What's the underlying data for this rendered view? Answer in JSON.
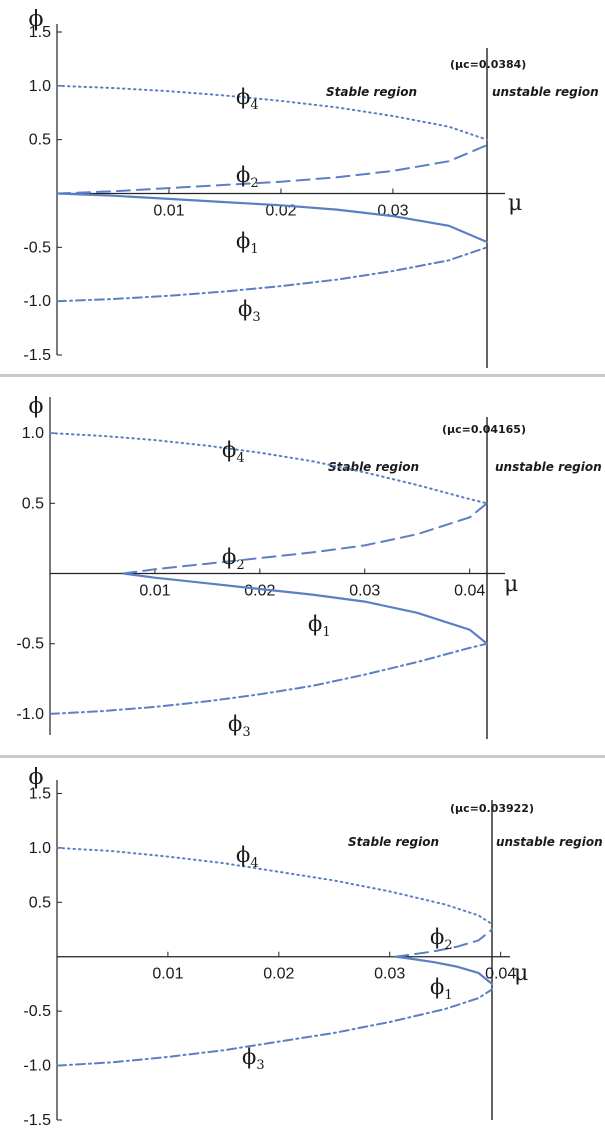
{
  "chart_data": [
    {
      "type": "line",
      "ylabel": "ϕ",
      "xlabel": "μ",
      "critical_label": "(μc=0.0384)",
      "stable_label": "Stable region",
      "unstable_label": "unstable region",
      "mu_c": 0.0384,
      "x_ticks": [
        "0.01",
        "0.02",
        "0.03"
      ],
      "y_ticks": [
        "1.5",
        "1.0",
        "0.5",
        "-0.5",
        "-1.0",
        "-1.5"
      ],
      "xlim": [
        0,
        0.0384
      ],
      "ylim": [
        -1.5,
        1.5
      ],
      "series": [
        {
          "name": "ϕ4",
          "style": "dotted",
          "x": [
            0,
            0.005,
            0.01,
            0.015,
            0.02,
            0.025,
            0.03,
            0.035,
            0.0384
          ],
          "y": [
            1.0,
            0.98,
            0.95,
            0.91,
            0.86,
            0.8,
            0.72,
            0.62,
            0.5
          ]
        },
        {
          "name": "ϕ2",
          "style": "dashed",
          "x": [
            0,
            0.005,
            0.01,
            0.015,
            0.02,
            0.025,
            0.03,
            0.035,
            0.0384
          ],
          "y": [
            0.0,
            0.02,
            0.05,
            0.08,
            0.11,
            0.15,
            0.21,
            0.3,
            0.45
          ]
        },
        {
          "name": "ϕ1",
          "style": "solid",
          "x": [
            0,
            0.005,
            0.01,
            0.015,
            0.02,
            0.025,
            0.03,
            0.035,
            0.0384
          ],
          "y": [
            0.0,
            -0.02,
            -0.05,
            -0.08,
            -0.11,
            -0.15,
            -0.21,
            -0.3,
            -0.45
          ]
        },
        {
          "name": "ϕ3",
          "style": "dashdot",
          "x": [
            0,
            0.005,
            0.01,
            0.015,
            0.02,
            0.025,
            0.03,
            0.035,
            0.0384
          ],
          "y": [
            -1.0,
            -0.98,
            -0.95,
            -0.91,
            -0.86,
            -0.8,
            -0.72,
            -0.62,
            -0.5
          ]
        }
      ]
    },
    {
      "type": "line",
      "ylabel": "ϕ",
      "xlabel": "μ",
      "critical_label": "(μc=0.04165)",
      "stable_label": "Stable region",
      "unstable_label": "unstable region",
      "mu_c": 0.04165,
      "x_ticks": [
        "0.01",
        "0.02",
        "0.03",
        "0.04"
      ],
      "y_ticks": [
        "1.0",
        "0.5",
        "-0.5",
        "-1.0"
      ],
      "xlim": [
        0,
        0.04165
      ],
      "ylim": [
        -1.15,
        1.2
      ],
      "series": [
        {
          "name": "ϕ4",
          "style": "dotted",
          "x": [
            0,
            0.005,
            0.01,
            0.015,
            0.02,
            0.025,
            0.03,
            0.035,
            0.04,
            0.04165
          ],
          "y": [
            1.0,
            0.98,
            0.95,
            0.91,
            0.86,
            0.8,
            0.72,
            0.63,
            0.53,
            0.5
          ]
        },
        {
          "name": "ϕ2",
          "style": "dashed",
          "x": [
            0.007,
            0.01,
            0.015,
            0.02,
            0.025,
            0.03,
            0.035,
            0.04,
            0.04165
          ],
          "y": [
            0.0,
            0.03,
            0.07,
            0.11,
            0.15,
            0.2,
            0.28,
            0.4,
            0.5
          ]
        },
        {
          "name": "ϕ1",
          "style": "solid",
          "x": [
            0.007,
            0.01,
            0.015,
            0.02,
            0.025,
            0.03,
            0.035,
            0.04,
            0.04165
          ],
          "y": [
            0.0,
            -0.03,
            -0.07,
            -0.11,
            -0.15,
            -0.2,
            -0.28,
            -0.4,
            -0.5
          ]
        },
        {
          "name": "ϕ3",
          "style": "dashdot",
          "x": [
            0,
            0.005,
            0.01,
            0.015,
            0.02,
            0.025,
            0.03,
            0.035,
            0.04,
            0.04165
          ],
          "y": [
            -1.0,
            -0.98,
            -0.95,
            -0.91,
            -0.86,
            -0.8,
            -0.72,
            -0.63,
            -0.53,
            -0.5
          ]
        }
      ]
    },
    {
      "type": "line",
      "ylabel": "ϕ",
      "xlabel": "μ",
      "critical_label": "(μc=0.03922)",
      "stable_label": "Stable region",
      "unstable_label": "unstable region",
      "mu_c": 0.03922,
      "x_ticks": [
        "0.01",
        "0.02",
        "0.03",
        "0.04"
      ],
      "y_ticks": [
        "1.5",
        "1.0",
        "0.5",
        "-0.5",
        "-1.0",
        "-1.5"
      ],
      "xlim": [
        0,
        0.0395
      ],
      "ylim": [
        -1.5,
        1.55
      ],
      "series": [
        {
          "name": "ϕ4",
          "style": "dotted",
          "x": [
            0,
            0.005,
            0.01,
            0.015,
            0.02,
            0.025,
            0.03,
            0.035,
            0.038,
            0.03922
          ],
          "y": [
            1.0,
            0.97,
            0.92,
            0.86,
            0.78,
            0.7,
            0.6,
            0.48,
            0.38,
            0.3
          ]
        },
        {
          "name": "ϕ2",
          "style": "dashed",
          "x": [
            0.0305,
            0.032,
            0.034,
            0.036,
            0.038,
            0.03922
          ],
          "y": [
            0.0,
            0.02,
            0.05,
            0.09,
            0.15,
            0.25
          ]
        },
        {
          "name": "ϕ1",
          "style": "solid",
          "x": [
            0.0305,
            0.032,
            0.034,
            0.036,
            0.038,
            0.03922
          ],
          "y": [
            0.0,
            -0.02,
            -0.05,
            -0.09,
            -0.15,
            -0.25
          ]
        },
        {
          "name": "ϕ3",
          "style": "dashdot",
          "x": [
            0,
            0.005,
            0.01,
            0.015,
            0.02,
            0.025,
            0.03,
            0.035,
            0.038,
            0.03922
          ],
          "y": [
            -1.0,
            -0.97,
            -0.92,
            -0.86,
            -0.78,
            -0.7,
            -0.6,
            -0.48,
            -0.38,
            -0.3
          ]
        }
      ]
    }
  ]
}
